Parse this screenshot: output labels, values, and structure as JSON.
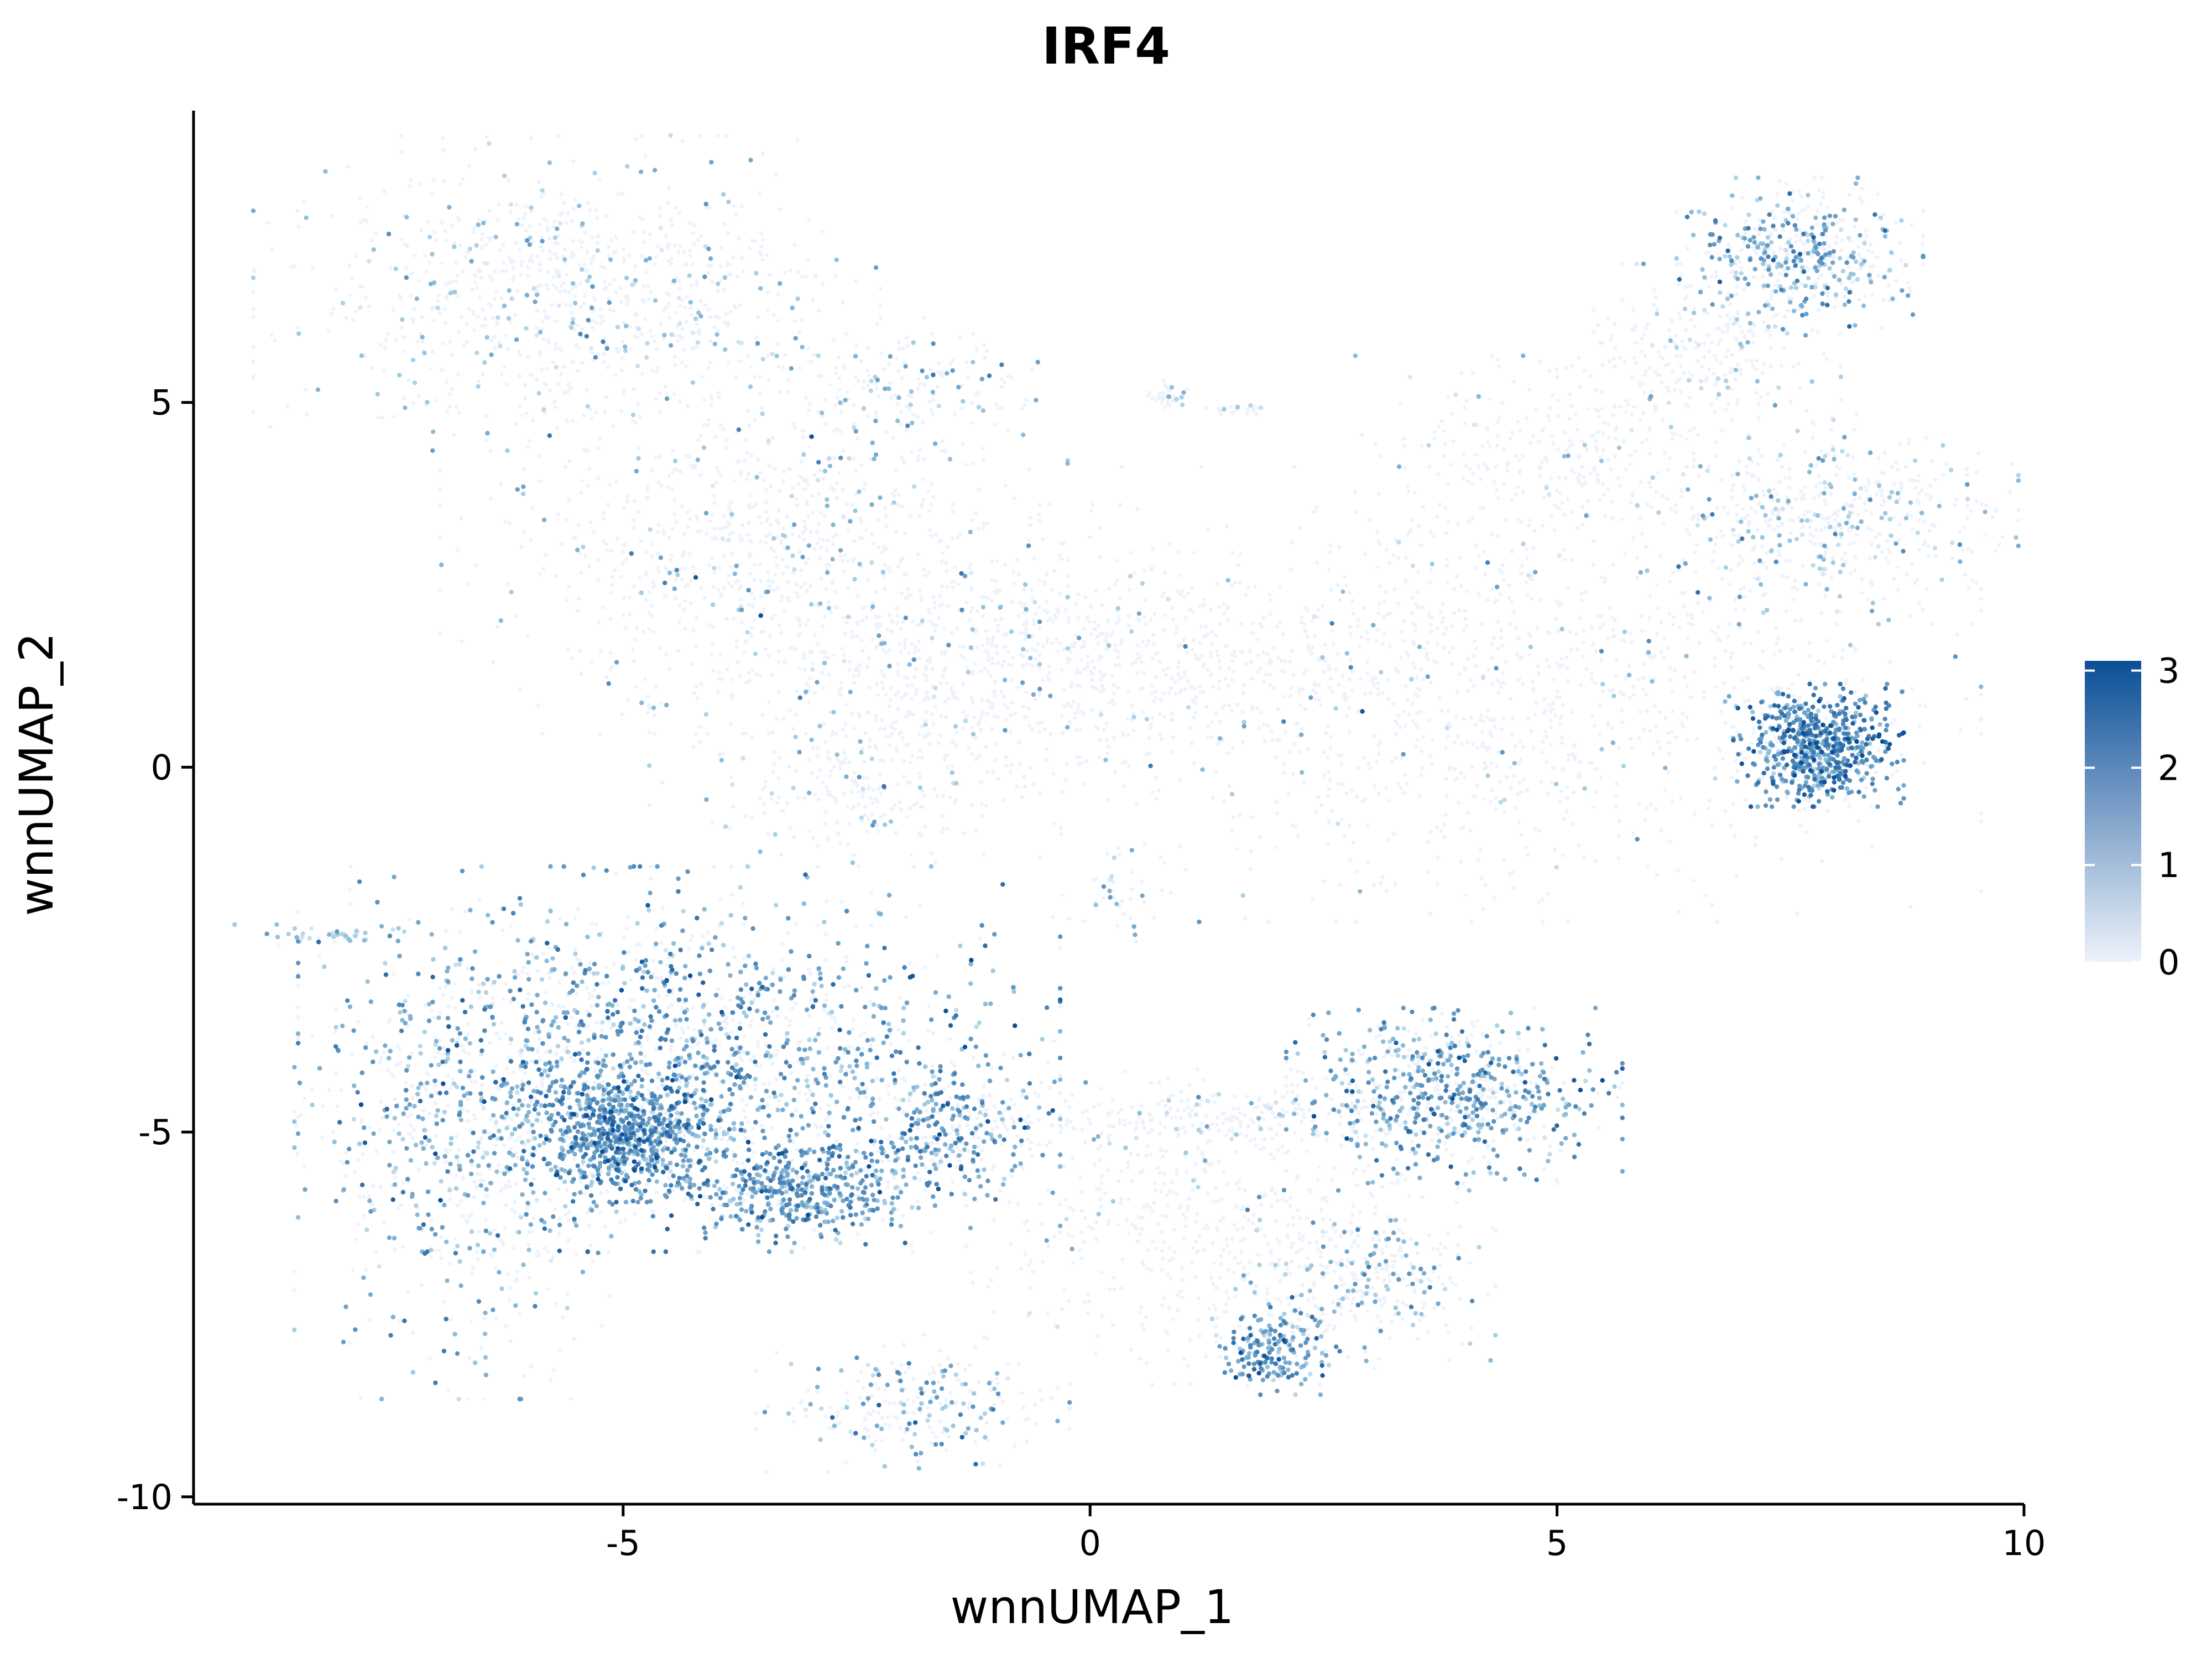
{
  "chart_data": {
    "type": "scatter",
    "title": "IRF4",
    "xlabel": "wnnUMAP_1",
    "ylabel": "wnnUMAP_2",
    "xlim": [
      -9.6,
      10
    ],
    "ylim": [
      -10.1,
      9
    ],
    "x_ticks": [
      -5,
      0,
      5,
      10
    ],
    "x_tick_labels": [
      "-5",
      "0",
      "5",
      "10"
    ],
    "y_ticks": [
      -10,
      -5,
      0,
      5
    ],
    "y_tick_labels": [
      "-10",
      "-5",
      "0",
      "5"
    ],
    "grid": false,
    "legend": {
      "placement": "right",
      "type": "colorbar",
      "min": 0,
      "max": 3.1,
      "ticks": [
        0,
        1,
        2,
        3
      ],
      "tick_labels": [
        "0",
        "1",
        "2",
        "3"
      ],
      "color_low": "#eef2fb",
      "color_high": "#0b4f96"
    },
    "clusters": [
      {
        "name": "top-left-large",
        "cx": -5.6,
        "cy": 6.5,
        "sx": 1.4,
        "sy": 0.9,
        "n": 900,
        "expr": 0.18,
        "mean_hi": 1.2
      },
      {
        "name": "top-left-lower",
        "cx": -3.6,
        "cy": 3.1,
        "sx": 1.4,
        "sy": 1.1,
        "n": 800,
        "expr": 0.14,
        "mean_hi": 1.4
      },
      {
        "name": "upper-center",
        "cx": -2.0,
        "cy": 5.2,
        "sx": 0.6,
        "sy": 0.4,
        "n": 160,
        "expr": 0.3,
        "mean_hi": 1.6
      },
      {
        "name": "middle-left-band",
        "cx": -1.6,
        "cy": 1.2,
        "sx": 1.3,
        "sy": 1.0,
        "n": 700,
        "expr": 0.08,
        "mean_hi": 1.4
      },
      {
        "name": "center-lower-small",
        "cx": -2.6,
        "cy": -0.4,
        "sx": 0.6,
        "sy": 0.4,
        "n": 150,
        "expr": 0.15,
        "mean_hi": 1.3
      },
      {
        "name": "bridge",
        "cx": 0.6,
        "cy": 1.5,
        "sx": 1.2,
        "sy": 0.6,
        "n": 400,
        "expr": 0.05,
        "mean_hi": 1.3
      },
      {
        "name": "right-center-large",
        "cx": 4.5,
        "cy": 1.0,
        "sx": 2.1,
        "sy": 1.3,
        "n": 1200,
        "expr": 0.06,
        "mean_hi": 1.4
      },
      {
        "name": "right-upper-mid",
        "cx": 5.0,
        "cy": 4.2,
        "sx": 0.9,
        "sy": 0.6,
        "n": 300,
        "expr": 0.05,
        "mean_hi": 1.2
      },
      {
        "name": "top-right",
        "cx": 7.6,
        "cy": 7.0,
        "sx": 0.55,
        "sy": 0.45,
        "n": 500,
        "expr": 0.45,
        "mean_hi": 1.6
      },
      {
        "name": "top-right-stalk",
        "cx": 6.6,
        "cy": 5.7,
        "sx": 0.6,
        "sy": 0.5,
        "n": 250,
        "expr": 0.15,
        "mean_hi": 1.2
      },
      {
        "name": "right-mid",
        "cx": 7.9,
        "cy": 3.4,
        "sx": 0.85,
        "sy": 0.6,
        "n": 500,
        "expr": 0.28,
        "mean_hi": 1.2
      },
      {
        "name": "right-dense-blob",
        "cx": 7.8,
        "cy": 0.3,
        "sx": 0.38,
        "sy": 0.35,
        "n": 700,
        "expr": 0.85,
        "mean_hi": 2.1
      },
      {
        "name": "bottom-left-main",
        "cx": -4.4,
        "cy": -4.0,
        "sx": 1.7,
        "sy": 1.1,
        "n": 2600,
        "expr": 0.6,
        "mean_hi": 1.8
      },
      {
        "name": "bottom-left-dense-core",
        "cx": -5.0,
        "cy": -5.0,
        "sx": 0.45,
        "sy": 0.4,
        "n": 700,
        "expr": 0.9,
        "mean_hi": 2.0
      },
      {
        "name": "bottom-left-lower",
        "cx": -3.1,
        "cy": -5.8,
        "sx": 0.6,
        "sy": 0.3,
        "n": 450,
        "expr": 0.8,
        "mean_hi": 1.9
      },
      {
        "name": "bottom-left-edge",
        "cx": -6.6,
        "cy": -5.3,
        "sx": 0.8,
        "sy": 1.4,
        "n": 600,
        "expr": 0.45,
        "mean_hi": 1.6
      },
      {
        "name": "bottom-left-right-lobe",
        "cx": -1.6,
        "cy": -5.0,
        "sx": 0.5,
        "sy": 0.4,
        "n": 300,
        "expr": 0.6,
        "mean_hi": 1.9
      },
      {
        "name": "bottom-left-spur",
        "cx": -8.2,
        "cy": -2.3,
        "sx": 0.4,
        "sy": 0.06,
        "n": 40,
        "expr": 0.9,
        "mean_hi": 1.0
      },
      {
        "name": "bottom-center-small",
        "cx": -1.9,
        "cy": -8.7,
        "sx": 0.7,
        "sy": 0.4,
        "n": 250,
        "expr": 0.4,
        "mean_hi": 1.5
      },
      {
        "name": "bottom-center-right",
        "cx": 1.3,
        "cy": -6.3,
        "sx": 1.1,
        "sy": 0.9,
        "n": 500,
        "expr": 0.07,
        "mean_hi": 1.3
      },
      {
        "name": "bottom-center-band",
        "cx": 1.3,
        "cy": -4.8,
        "sx": 1.2,
        "sy": 0.2,
        "n": 250,
        "expr": 0.15,
        "mean_hi": 1.2
      },
      {
        "name": "bottom-right",
        "cx": 3.9,
        "cy": -4.5,
        "sx": 0.75,
        "sy": 0.5,
        "n": 700,
        "expr": 0.6,
        "mean_hi": 1.8
      },
      {
        "name": "bottom-right-lower",
        "cx": 2.9,
        "cy": -7.0,
        "sx": 0.6,
        "sy": 0.5,
        "n": 300,
        "expr": 0.35,
        "mean_hi": 1.5
      },
      {
        "name": "bottom-right-dense",
        "cx": 2.0,
        "cy": -8.0,
        "sx": 0.28,
        "sy": 0.25,
        "n": 200,
        "expr": 0.8,
        "mean_hi": 1.9
      },
      {
        "name": "small-islands",
        "cx": 0.8,
        "cy": 5.1,
        "sx": 0.1,
        "sy": 0.1,
        "n": 40,
        "expr": 0.2,
        "mean_hi": 1.2
      },
      {
        "name": "small-island-2",
        "cx": 1.6,
        "cy": 4.9,
        "sx": 0.15,
        "sy": 0.03,
        "n": 20,
        "expr": 0.2,
        "mean_hi": 1.2
      },
      {
        "name": "small-island-3",
        "cx": 0.3,
        "cy": -1.8,
        "sx": 0.3,
        "sy": 0.3,
        "n": 40,
        "expr": 0.2,
        "mean_hi": 1.2
      }
    ]
  }
}
